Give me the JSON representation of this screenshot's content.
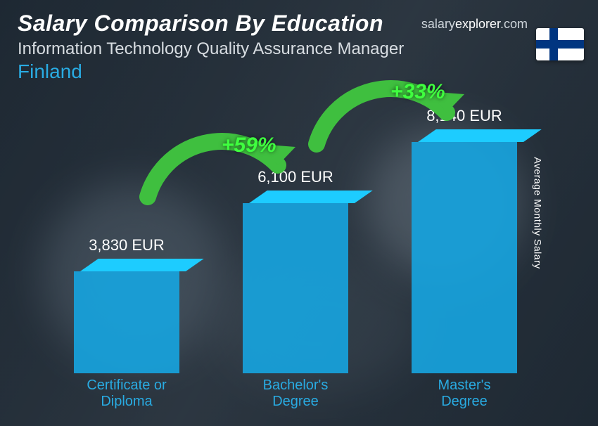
{
  "header": {
    "title": "Salary Comparison By Education",
    "subtitle": "Information Technology Quality Assurance Manager",
    "country": "Finland",
    "country_color": "#29abe2",
    "watermark_prefix": "salary",
    "watermark_domain": "explorer",
    "watermark_suffix": ".com"
  },
  "axis": {
    "ylabel": "Average Monthly Salary"
  },
  "chart": {
    "type": "bar",
    "max_value": 8140,
    "bar_color": "#17a3dd",
    "bar_top_color": "#17a3dd",
    "label_color": "#29abe2",
    "value_color": "#ffffff",
    "background_overlay": "rgba(20,30,40,0.55)",
    "bars": [
      {
        "category_line1": "Certificate or",
        "category_line2": "Diploma",
        "value": 3830,
        "value_label": "3,830 EUR"
      },
      {
        "category_line1": "Bachelor's",
        "category_line2": "Degree",
        "value": 6100,
        "value_label": "6,100 EUR"
      },
      {
        "category_line1": "Master's",
        "category_line2": "Degree",
        "value": 8140,
        "value_label": "8,140 EUR"
      }
    ],
    "increases": [
      {
        "from": 0,
        "to": 1,
        "pct_label": "+59%"
      },
      {
        "from": 1,
        "to": 2,
        "pct_label": "+33%"
      }
    ],
    "arrow_color": "#3fbf3f",
    "pct_color": "#3fff3f",
    "value_fontsize": 22,
    "xlabel_fontsize": 20,
    "pct_fontsize": 30
  },
  "flag": {
    "country": "Finland",
    "bg": "#ffffff",
    "cross": "#003580"
  }
}
